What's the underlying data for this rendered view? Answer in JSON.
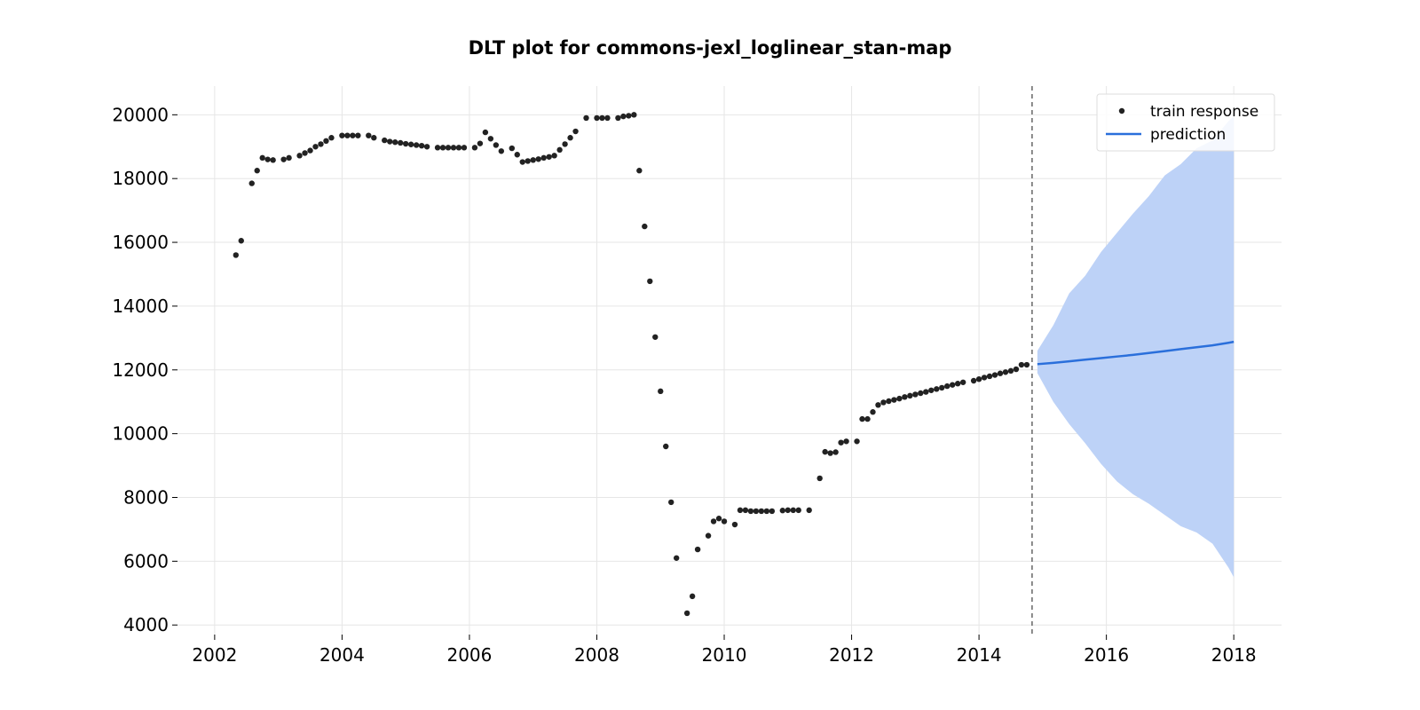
{
  "chart_data": {
    "type": "scatter",
    "title": "DLT plot for commons-jexl_loglinear_stan-map",
    "xlabel": "",
    "ylabel": "",
    "xlim": [
      "2001-06-01",
      "2018-10-01"
    ],
    "ylim": [
      3700,
      20900
    ],
    "x_ticks": [
      "2002",
      "2004",
      "2006",
      "2008",
      "2010",
      "2012",
      "2014",
      "2016",
      "2018"
    ],
    "y_ticks": [
      "4000",
      "6000",
      "8000",
      "10000",
      "12000",
      "14000",
      "16000",
      "18000",
      "20000"
    ],
    "grid": true,
    "legend_position": "top-right",
    "train_end": "2014-11-01",
    "series": [
      {
        "name": "train response",
        "kind": "scatter",
        "color": "#222222",
        "points": [
          [
            "2002-05-01",
            15600
          ],
          [
            "2002-06-01",
            16050
          ],
          [
            "2002-08-01",
            17850
          ],
          [
            "2002-09-01",
            18250
          ],
          [
            "2002-10-01",
            18650
          ],
          [
            "2002-11-01",
            18600
          ],
          [
            "2002-12-01",
            18580
          ],
          [
            "2003-02-01",
            18600
          ],
          [
            "2003-03-01",
            18650
          ],
          [
            "2003-05-01",
            18720
          ],
          [
            "2003-06-01",
            18800
          ],
          [
            "2003-07-01",
            18880
          ],
          [
            "2003-08-01",
            19000
          ],
          [
            "2003-09-01",
            19080
          ],
          [
            "2003-10-01",
            19180
          ],
          [
            "2003-11-01",
            19280
          ],
          [
            "2004-01-01",
            19350
          ],
          [
            "2004-02-01",
            19350
          ],
          [
            "2004-03-01",
            19350
          ],
          [
            "2004-04-01",
            19350
          ],
          [
            "2004-06-01",
            19350
          ],
          [
            "2004-07-01",
            19280
          ],
          [
            "2004-09-01",
            19200
          ],
          [
            "2004-10-01",
            19160
          ],
          [
            "2004-11-01",
            19140
          ],
          [
            "2004-12-01",
            19120
          ],
          [
            "2005-01-01",
            19090
          ],
          [
            "2005-02-01",
            19070
          ],
          [
            "2005-03-01",
            19050
          ],
          [
            "2005-04-01",
            19030
          ],
          [
            "2005-05-01",
            19000
          ],
          [
            "2005-07-01",
            18970
          ],
          [
            "2005-08-01",
            18970
          ],
          [
            "2005-09-01",
            18970
          ],
          [
            "2005-10-01",
            18970
          ],
          [
            "2005-11-01",
            18970
          ],
          [
            "2005-12-01",
            18970
          ],
          [
            "2006-02-01",
            18970
          ],
          [
            "2006-03-01",
            19100
          ],
          [
            "2006-04-01",
            19450
          ],
          [
            "2006-05-01",
            19250
          ],
          [
            "2006-06-01",
            19050
          ],
          [
            "2006-07-01",
            18860
          ],
          [
            "2006-09-01",
            18950
          ],
          [
            "2006-10-01",
            18750
          ],
          [
            "2006-11-01",
            18520
          ],
          [
            "2006-12-01",
            18550
          ],
          [
            "2007-01-01",
            18580
          ],
          [
            "2007-02-01",
            18610
          ],
          [
            "2007-03-01",
            18650
          ],
          [
            "2007-04-01",
            18680
          ],
          [
            "2007-05-01",
            18720
          ],
          [
            "2007-06-01",
            18900
          ],
          [
            "2007-07-01",
            19080
          ],
          [
            "2007-08-01",
            19280
          ],
          [
            "2007-09-01",
            19480
          ],
          [
            "2007-11-01",
            19900
          ],
          [
            "2008-01-01",
            19900
          ],
          [
            "2008-02-01",
            19900
          ],
          [
            "2008-03-01",
            19900
          ],
          [
            "2008-05-01",
            19900
          ],
          [
            "2008-06-01",
            19950
          ],
          [
            "2008-07-01",
            19970
          ],
          [
            "2008-08-01",
            20000
          ],
          [
            "2008-09-01",
            18250
          ],
          [
            "2008-10-01",
            16500
          ],
          [
            "2008-11-01",
            14780
          ],
          [
            "2008-12-01",
            13030
          ],
          [
            "2009-01-01",
            11330
          ],
          [
            "2009-02-01",
            9600
          ],
          [
            "2009-03-01",
            7850
          ],
          [
            "2009-04-01",
            6100
          ],
          [
            "2009-06-01",
            4370
          ],
          [
            "2009-07-01",
            4900
          ],
          [
            "2009-08-01",
            6370
          ],
          [
            "2009-10-01",
            6800
          ],
          [
            "2009-11-01",
            7250
          ],
          [
            "2009-12-01",
            7340
          ],
          [
            "2010-01-01",
            7250
          ],
          [
            "2010-03-01",
            7150
          ],
          [
            "2010-04-01",
            7600
          ],
          [
            "2010-05-01",
            7600
          ],
          [
            "2010-06-01",
            7570
          ],
          [
            "2010-07-01",
            7570
          ],
          [
            "2010-08-01",
            7570
          ],
          [
            "2010-09-01",
            7570
          ],
          [
            "2010-10-01",
            7570
          ],
          [
            "2010-12-01",
            7590
          ],
          [
            "2011-01-01",
            7600
          ],
          [
            "2011-02-01",
            7600
          ],
          [
            "2011-03-01",
            7600
          ],
          [
            "2011-05-01",
            7600
          ],
          [
            "2011-07-01",
            8600
          ],
          [
            "2011-08-01",
            9430
          ],
          [
            "2011-09-01",
            9390
          ],
          [
            "2011-10-01",
            9420
          ],
          [
            "2011-11-01",
            9720
          ],
          [
            "2011-12-01",
            9760
          ],
          [
            "2012-02-01",
            9760
          ],
          [
            "2012-03-01",
            10460
          ],
          [
            "2012-04-01",
            10460
          ],
          [
            "2012-05-01",
            10680
          ],
          [
            "2012-06-01",
            10900
          ],
          [
            "2012-07-01",
            10980
          ],
          [
            "2012-08-01",
            11020
          ],
          [
            "2012-09-01",
            11060
          ],
          [
            "2012-10-01",
            11100
          ],
          [
            "2012-11-01",
            11150
          ],
          [
            "2012-12-01",
            11190
          ],
          [
            "2013-01-01",
            11230
          ],
          [
            "2013-02-01",
            11270
          ],
          [
            "2013-03-01",
            11310
          ],
          [
            "2013-04-01",
            11360
          ],
          [
            "2013-05-01",
            11400
          ],
          [
            "2013-06-01",
            11440
          ],
          [
            "2013-07-01",
            11490
          ],
          [
            "2013-08-01",
            11530
          ],
          [
            "2013-09-01",
            11570
          ],
          [
            "2013-10-01",
            11610
          ],
          [
            "2013-12-01",
            11660
          ],
          [
            "2014-01-01",
            11710
          ],
          [
            "2014-02-01",
            11760
          ],
          [
            "2014-03-01",
            11800
          ],
          [
            "2014-04-01",
            11840
          ],
          [
            "2014-05-01",
            11890
          ],
          [
            "2014-06-01",
            11930
          ],
          [
            "2014-07-01",
            11970
          ],
          [
            "2014-08-01",
            12020
          ],
          [
            "2014-09-01",
            12160
          ],
          [
            "2014-10-01",
            12160
          ]
        ]
      },
      {
        "name": "prediction",
        "kind": "line",
        "color": "#2a6fdb",
        "band_color": "#bdd2f7",
        "points": [
          [
            "2014-12-01",
            12180
          ],
          [
            "2015-03-01",
            12220
          ],
          [
            "2015-06-01",
            12270
          ],
          [
            "2015-09-01",
            12320
          ],
          [
            "2015-12-01",
            12370
          ],
          [
            "2016-03-01",
            12420
          ],
          [
            "2016-06-01",
            12470
          ],
          [
            "2016-09-01",
            12530
          ],
          [
            "2016-12-01",
            12590
          ],
          [
            "2017-03-01",
            12650
          ],
          [
            "2017-06-01",
            12710
          ],
          [
            "2017-09-01",
            12770
          ],
          [
            "2017-12-01",
            12850
          ],
          [
            "2018-01-01",
            12880
          ]
        ],
        "band_upper": [
          [
            "2014-12-01",
            12600
          ],
          [
            "2015-03-01",
            13400
          ],
          [
            "2015-06-01",
            14400
          ],
          [
            "2015-09-01",
            14950
          ],
          [
            "2015-12-01",
            15700
          ],
          [
            "2016-03-01",
            16300
          ],
          [
            "2016-06-01",
            16900
          ],
          [
            "2016-09-01",
            17450
          ],
          [
            "2016-12-01",
            18100
          ],
          [
            "2017-03-01",
            18450
          ],
          [
            "2017-06-01",
            18950
          ],
          [
            "2017-09-01",
            19200
          ],
          [
            "2017-12-01",
            19800
          ],
          [
            "2018-01-01",
            19950
          ]
        ],
        "band_lower": [
          [
            "2014-12-01",
            11900
          ],
          [
            "2015-03-01",
            11000
          ],
          [
            "2015-06-01",
            10300
          ],
          [
            "2015-09-01",
            9700
          ],
          [
            "2015-12-01",
            9050
          ],
          [
            "2016-03-01",
            8500
          ],
          [
            "2016-06-01",
            8100
          ],
          [
            "2016-09-01",
            7800
          ],
          [
            "2016-12-01",
            7450
          ],
          [
            "2017-03-01",
            7100
          ],
          [
            "2017-06-01",
            6900
          ],
          [
            "2017-09-01",
            6550
          ],
          [
            "2017-12-01",
            5800
          ],
          [
            "2018-01-01",
            5500
          ]
        ]
      }
    ]
  }
}
